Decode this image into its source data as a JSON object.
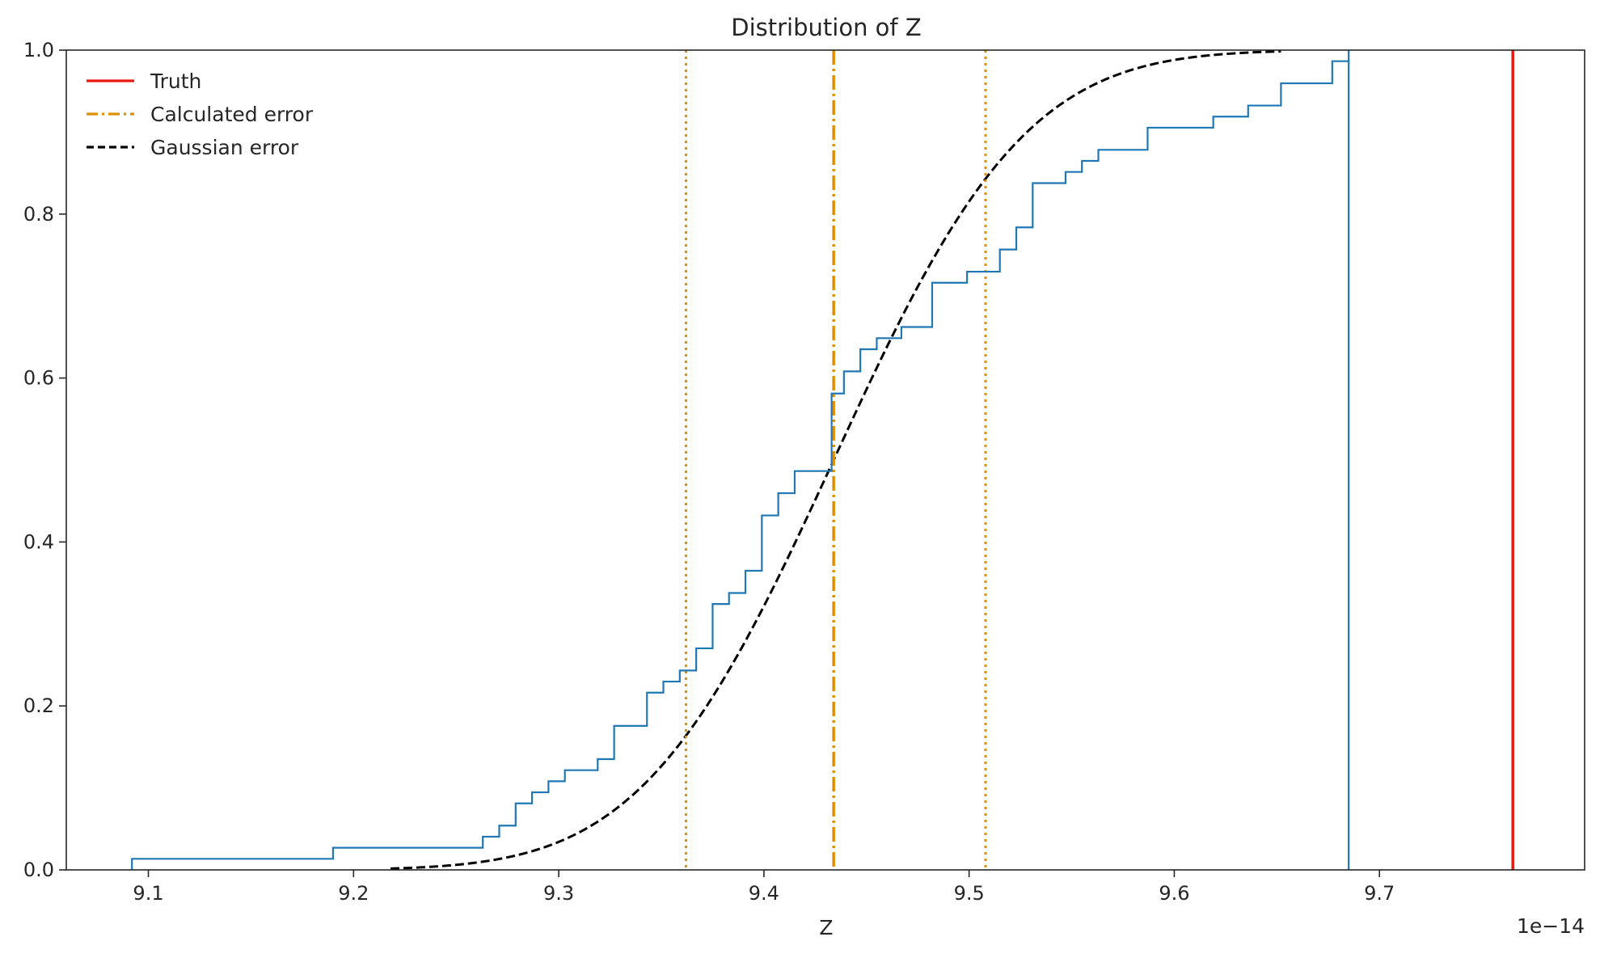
{
  "chart_data": {
    "type": "line",
    "title": "Distribution of Z",
    "xlabel": "Z",
    "ylabel": "",
    "x_offset_label": "1e−14",
    "xlim": [
      9.06,
      9.8
    ],
    "ylim": [
      0.0,
      1.0
    ],
    "grid": false,
    "legend_position": "top-left",
    "x_ticks": [
      9.1,
      9.2,
      9.3,
      9.4,
      9.5,
      9.6,
      9.7
    ],
    "x_tick_labels": [
      "9.1",
      "9.2",
      "9.3",
      "9.4",
      "9.5",
      "9.6",
      "9.7"
    ],
    "y_ticks": [
      0.0,
      0.2,
      0.4,
      0.6,
      0.8,
      1.0
    ],
    "y_tick_labels": [
      "0.0",
      "0.2",
      "0.4",
      "0.6",
      "0.8",
      "1.0"
    ],
    "legend": [
      {
        "label": "Truth",
        "color": "#e8190e",
        "style": "solid"
      },
      {
        "label": "Calculated error",
        "color": "#de8f05",
        "style": "dashdot"
      },
      {
        "label": "Gaussian error",
        "color": "#000000",
        "style": "dashed"
      }
    ],
    "series": [
      {
        "kind": "step",
        "color": "#1f77b4",
        "x": [
          9.092,
          9.19,
          9.263,
          9.271,
          9.279,
          9.287,
          9.295,
          9.303,
          9.319,
          9.327,
          9.343,
          9.351,
          9.359,
          9.367,
          9.375,
          9.383,
          9.391,
          9.399,
          9.407,
          9.415,
          9.433,
          9.439,
          9.447,
          9.455,
          9.467,
          9.482,
          9.499,
          9.515,
          9.523,
          9.531,
          9.547,
          9.555,
          9.563,
          9.587,
          9.619,
          9.636,
          9.652,
          9.677,
          9.685
        ],
        "y": [
          0.0135,
          0.027,
          0.0405,
          0.054,
          0.0811,
          0.0946,
          0.1081,
          0.1216,
          0.1351,
          0.1757,
          0.2162,
          0.2297,
          0.2432,
          0.2703,
          0.3243,
          0.3378,
          0.3649,
          0.4324,
          0.4595,
          0.4865,
          0.5811,
          0.6081,
          0.6351,
          0.6486,
          0.6622,
          0.7162,
          0.7297,
          0.7568,
          0.7838,
          0.8378,
          0.8514,
          0.8649,
          0.8784,
          0.9054,
          0.9189,
          0.9324,
          0.9595,
          0.9865,
          1.0
        ]
      }
    ],
    "truth_x": 9.765,
    "calculated_center_x": 9.434,
    "calculated_bounds_x": [
      9.362,
      9.508
    ],
    "gaussian": {
      "mean": 9.434,
      "sigma": 0.0735,
      "x_range": [
        9.218,
        9.652
      ]
    }
  }
}
